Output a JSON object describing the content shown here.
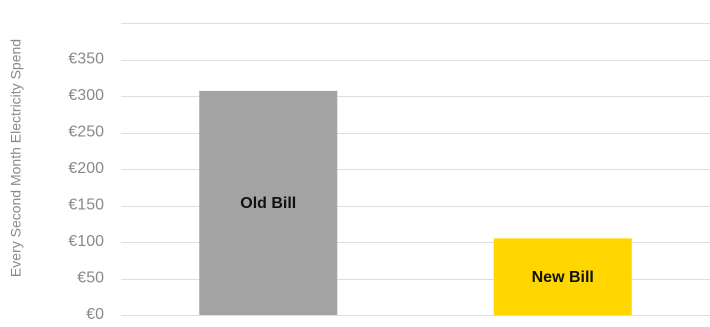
{
  "chart_data": {
    "type": "bar",
    "ylabel": "Every Second Month Electricity Spend",
    "categories": [
      "Old Bill",
      "New Bill"
    ],
    "values": [
      307,
      105
    ],
    "colors": [
      "#a3a3a3",
      "#ffd600"
    ],
    "ylim": [
      0,
      400
    ],
    "yticks": [
      0,
      50,
      100,
      150,
      200,
      250,
      300,
      350
    ],
    "ytick_labels": [
      "€0",
      "€50",
      "€100",
      "€150",
      "€200",
      "€250",
      "€300",
      "€350"
    ],
    "grid": true,
    "legend": "none",
    "bar_labels": "inside"
  }
}
